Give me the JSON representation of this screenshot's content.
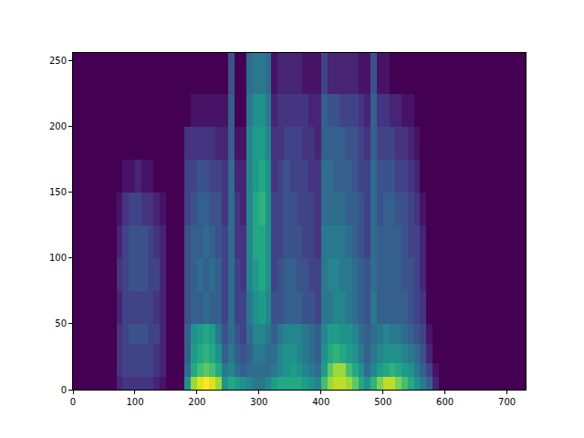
{
  "chart_data": {
    "type": "heatmap",
    "x": [
      0,
      70,
      80,
      90,
      100,
      110,
      120,
      130,
      140,
      150,
      160,
      170,
      180,
      190,
      200,
      210,
      220,
      230,
      240,
      250,
      260,
      270,
      280,
      290,
      300,
      310,
      320,
      330,
      340,
      350,
      360,
      370,
      380,
      390,
      400,
      410,
      420,
      430,
      440,
      450,
      460,
      470,
      480,
      490,
      500,
      510,
      520,
      530,
      540,
      550,
      560,
      570,
      580,
      590,
      600,
      730
    ],
    "y": [
      0,
      10,
      20,
      35,
      50,
      75,
      100,
      125,
      150,
      175,
      200,
      225,
      256
    ],
    "cells": [
      [
        0,
        0,
        0,
        0,
        0,
        0,
        0,
        0,
        0,
        0,
        0,
        0
      ],
      [
        0.1,
        0.15,
        0.15,
        0.15,
        0.1,
        0.15,
        0.1,
        0.05,
        0,
        0,
        0,
        0
      ],
      [
        0.15,
        0.2,
        0.2,
        0.2,
        0.2,
        0.2,
        0.2,
        0.15,
        0.05,
        0,
        0,
        0
      ],
      [
        0.15,
        0.2,
        0.2,
        0.25,
        0.2,
        0.25,
        0.25,
        0.2,
        0.05,
        0,
        0,
        0
      ],
      [
        0.15,
        0.2,
        0.2,
        0.25,
        0.2,
        0.25,
        0.25,
        0.2,
        0.1,
        0,
        0,
        0
      ],
      [
        0.15,
        0.2,
        0.2,
        0.25,
        0.2,
        0.25,
        0.25,
        0.15,
        0.05,
        0,
        0,
        0
      ],
      [
        0.15,
        0.2,
        0.2,
        0.2,
        0.2,
        0.2,
        0.2,
        0.15,
        0.05,
        0,
        0,
        0
      ],
      [
        0.1,
        0.15,
        0.15,
        0.2,
        0.15,
        0.2,
        0.15,
        0.1,
        0,
        0,
        0,
        0
      ],
      [
        0.05,
        0.1,
        0.1,
        0.1,
        0.1,
        0.1,
        0.1,
        0.05,
        0,
        0,
        0,
        0
      ],
      [
        0,
        0,
        0,
        0,
        0,
        0,
        0,
        0,
        0,
        0,
        0,
        0
      ],
      [
        0,
        0,
        0,
        0,
        0,
        0,
        0,
        0,
        0,
        0,
        0,
        0
      ],
      [
        0,
        0,
        0,
        0,
        0,
        0,
        0,
        0,
        0,
        0,
        0,
        0
      ],
      [
        0.5,
        0.35,
        0.3,
        0.3,
        0.25,
        0.25,
        0.25,
        0.2,
        0.2,
        0.15,
        0,
        0
      ],
      [
        0.85,
        0.6,
        0.55,
        0.5,
        0.3,
        0.3,
        0.3,
        0.25,
        0.2,
        0.15,
        0.05,
        0
      ],
      [
        0.95,
        0.7,
        0.6,
        0.55,
        0.3,
        0.35,
        0.3,
        0.3,
        0.25,
        0.15,
        0.05,
        0
      ],
      [
        1.0,
        0.75,
        0.65,
        0.6,
        0.35,
        0.3,
        0.35,
        0.3,
        0.25,
        0.15,
        0.05,
        0
      ],
      [
        0.95,
        0.7,
        0.6,
        0.55,
        0.3,
        0.35,
        0.3,
        0.25,
        0.2,
        0.15,
        0.05,
        0
      ],
      [
        0.85,
        0.6,
        0.5,
        0.4,
        0.3,
        0.3,
        0.25,
        0.25,
        0.2,
        0.1,
        0.05,
        0
      ],
      [
        0.5,
        0.4,
        0.3,
        0.25,
        0.2,
        0.2,
        0.2,
        0.15,
        0.15,
        0.1,
        0.05,
        0
      ],
      [
        0.6,
        0.45,
        0.4,
        0.35,
        0.35,
        0.35,
        0.35,
        0.35,
        0.35,
        0.3,
        0.3,
        0.25
      ],
      [
        0.55,
        0.35,
        0.3,
        0.25,
        0.2,
        0.2,
        0.15,
        0.15,
        0.1,
        0.05,
        0,
        0
      ],
      [
        0.5,
        0.3,
        0.25,
        0.2,
        0.2,
        0.15,
        0.15,
        0.1,
        0.1,
        0.05,
        0,
        0
      ],
      [
        0.45,
        0.35,
        0.3,
        0.35,
        0.4,
        0.45,
        0.45,
        0.45,
        0.45,
        0.45,
        0.4,
        0.35
      ],
      [
        0.4,
        0.35,
        0.4,
        0.45,
        0.5,
        0.55,
        0.6,
        0.6,
        0.55,
        0.55,
        0.5,
        0.4
      ],
      [
        0.4,
        0.35,
        0.4,
        0.45,
        0.55,
        0.6,
        0.6,
        0.65,
        0.6,
        0.55,
        0.5,
        0.4
      ],
      [
        0.45,
        0.35,
        0.35,
        0.4,
        0.45,
        0.5,
        0.5,
        0.5,
        0.5,
        0.45,
        0.4,
        0.35
      ],
      [
        0.55,
        0.4,
        0.35,
        0.3,
        0.25,
        0.2,
        0.2,
        0.2,
        0.15,
        0.15,
        0.1,
        0.05
      ],
      [
        0.6,
        0.45,
        0.45,
        0.4,
        0.25,
        0.25,
        0.2,
        0.2,
        0.2,
        0.15,
        0.15,
        0.1
      ],
      [
        0.6,
        0.5,
        0.5,
        0.45,
        0.3,
        0.3,
        0.25,
        0.25,
        0.25,
        0.2,
        0.15,
        0.1
      ],
      [
        0.6,
        0.55,
        0.5,
        0.45,
        0.3,
        0.3,
        0.25,
        0.25,
        0.2,
        0.2,
        0.15,
        0.1
      ],
      [
        0.6,
        0.5,
        0.45,
        0.45,
        0.3,
        0.25,
        0.25,
        0.2,
        0.2,
        0.2,
        0.15,
        0.1
      ],
      [
        0.55,
        0.45,
        0.4,
        0.4,
        0.25,
        0.25,
        0.2,
        0.2,
        0.2,
        0.15,
        0.15,
        0.05
      ],
      [
        0.5,
        0.4,
        0.35,
        0.35,
        0.25,
        0.2,
        0.2,
        0.2,
        0.15,
        0.15,
        0.1,
        0.05
      ],
      [
        0.45,
        0.35,
        0.3,
        0.3,
        0.2,
        0.2,
        0.15,
        0.15,
        0.15,
        0.1,
        0.1,
        0.05
      ],
      [
        0.7,
        0.55,
        0.5,
        0.45,
        0.4,
        0.4,
        0.4,
        0.35,
        0.35,
        0.3,
        0.3,
        0.2
      ],
      [
        0.85,
        0.75,
        0.6,
        0.55,
        0.4,
        0.45,
        0.4,
        0.35,
        0.35,
        0.3,
        0.25,
        0.1
      ],
      [
        0.9,
        0.85,
        0.65,
        0.55,
        0.45,
        0.45,
        0.4,
        0.35,
        0.3,
        0.3,
        0.25,
        0.1
      ],
      [
        0.9,
        0.85,
        0.6,
        0.5,
        0.45,
        0.4,
        0.4,
        0.35,
        0.3,
        0.3,
        0.2,
        0.1
      ],
      [
        0.85,
        0.7,
        0.55,
        0.5,
        0.4,
        0.4,
        0.35,
        0.3,
        0.3,
        0.25,
        0.2,
        0.1
      ],
      [
        0.75,
        0.6,
        0.5,
        0.45,
        0.35,
        0.35,
        0.3,
        0.3,
        0.25,
        0.25,
        0.2,
        0.1
      ],
      [
        0.6,
        0.5,
        0.4,
        0.35,
        0.3,
        0.3,
        0.25,
        0.25,
        0.2,
        0.2,
        0.15,
        0.05
      ],
      [
        0.5,
        0.35,
        0.3,
        0.3,
        0.25,
        0.25,
        0.2,
        0.2,
        0.2,
        0.15,
        0.1,
        0.05
      ],
      [
        0.65,
        0.45,
        0.4,
        0.35,
        0.4,
        0.35,
        0.35,
        0.35,
        0.35,
        0.3,
        0.3,
        0.25
      ],
      [
        0.8,
        0.55,
        0.45,
        0.4,
        0.3,
        0.3,
        0.3,
        0.25,
        0.25,
        0.2,
        0.15,
        0.05
      ],
      [
        0.9,
        0.6,
        0.5,
        0.45,
        0.3,
        0.3,
        0.3,
        0.3,
        0.25,
        0.2,
        0.15,
        0.05
      ],
      [
        0.9,
        0.65,
        0.5,
        0.4,
        0.3,
        0.3,
        0.3,
        0.3,
        0.25,
        0.2,
        0.1,
        0
      ],
      [
        0.8,
        0.6,
        0.5,
        0.4,
        0.3,
        0.3,
        0.3,
        0.25,
        0.2,
        0.15,
        0.1,
        0
      ],
      [
        0.7,
        0.55,
        0.45,
        0.35,
        0.3,
        0.25,
        0.25,
        0.25,
        0.2,
        0.15,
        0.05,
        0
      ],
      [
        0.6,
        0.5,
        0.4,
        0.3,
        0.25,
        0.25,
        0.2,
        0.2,
        0.15,
        0.1,
        0.05,
        0
      ],
      [
        0.5,
        0.4,
        0.35,
        0.25,
        0.2,
        0.2,
        0.2,
        0.15,
        0.1,
        0.05,
        0,
        0
      ],
      [
        0.4,
        0.3,
        0.25,
        0.2,
        0.15,
        0.1,
        0.1,
        0.05,
        0,
        0,
        0,
        0
      ],
      [
        0.3,
        0.2,
        0.1,
        0.05,
        0,
        0,
        0,
        0,
        0,
        0,
        0,
        0
      ],
      [
        0.1,
        0.05,
        0,
        0,
        0,
        0,
        0,
        0,
        0,
        0,
        0,
        0
      ],
      [
        0,
        0,
        0,
        0,
        0,
        0,
        0,
        0,
        0,
        0,
        0,
        0
      ],
      [
        0,
        0,
        0,
        0,
        0,
        0,
        0,
        0,
        0,
        0,
        0,
        0
      ]
    ],
    "zlim": [
      0,
      1
    ],
    "xlim": [
      0,
      730
    ],
    "xticks": [
      0,
      100,
      200,
      300,
      400,
      500,
      600,
      700
    ],
    "ylim": [
      0,
      256
    ],
    "yticks": [
      0,
      50,
      100,
      150,
      200,
      250
    ],
    "grid": false
  }
}
